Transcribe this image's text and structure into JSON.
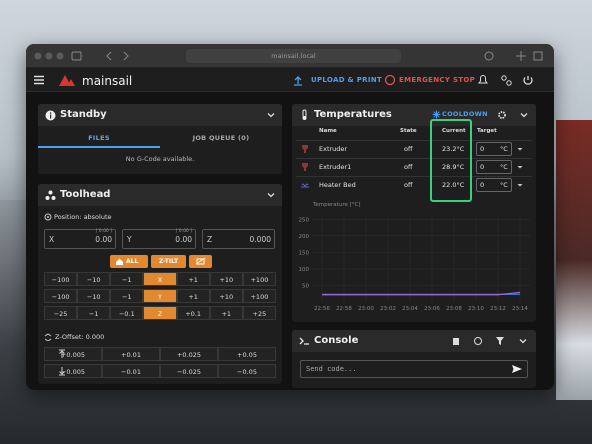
{
  "browser": {
    "url": "mainsail.local"
  },
  "header": {
    "brand": "mainsail",
    "upload": "UPLOAD & PRINT",
    "emergency": "EMERGENCY STOP"
  },
  "standby": {
    "title": "Standby",
    "tabs": [
      "FILES",
      "JOB QUEUE (0)"
    ],
    "empty": "No G-Code available."
  },
  "toolhead": {
    "title": "Toolhead",
    "position": "Position: absolute",
    "axes": [
      {
        "label": "X",
        "target": "[ 0.00 ]",
        "value": "0.00"
      },
      {
        "label": "Y",
        "target": "[ 0.00 ]",
        "value": "0.00"
      },
      {
        "label": "Z",
        "value": "0.000"
      }
    ],
    "home_buttons": [
      "ALL",
      "Z-TILT"
    ],
    "move_rows": [
      [
        "−100",
        "−10",
        "−1",
        "X",
        "+1",
        "+10",
        "+100"
      ],
      [
        "−100",
        "−10",
        "−1",
        "Y",
        "+1",
        "+10",
        "+100"
      ],
      [
        "−25",
        "−1",
        "−0.1",
        "Z",
        "+0.1",
        "+1",
        "+25"
      ]
    ],
    "z_offset": "Z-Offset: 0.000",
    "z_offset_rows": [
      [
        "+0.005",
        "+0.01",
        "+0.025",
        "+0.05"
      ],
      [
        "−0.005",
        "−0.01",
        "−0.025",
        "−0.05"
      ]
    ]
  },
  "temperatures": {
    "title": "Temperatures",
    "cooldown": "COOLDOWN",
    "columns": [
      "Name",
      "State",
      "Current",
      "Target"
    ],
    "rows": [
      {
        "name": "Extruder",
        "state": "off",
        "current": "23.2°C",
        "target": "0",
        "unit": "°C"
      },
      {
        "name": "Extruder1",
        "state": "off",
        "current": "28.9°C",
        "target": "0",
        "unit": "°C"
      },
      {
        "name": "Heater Bed",
        "state": "off",
        "current": "22.0°C",
        "target": "0",
        "unit": "°C"
      }
    ],
    "chart": {
      "type": "line",
      "ylabel": "Temperature [°C]",
      "categories": [
        "22:56",
        "22:58",
        "23:00",
        "23:02",
        "23:04",
        "23:06",
        "23:08",
        "23:10",
        "23:12",
        "23:14"
      ],
      "ylim": [
        0,
        260
      ],
      "yticks": [
        50,
        100,
        150,
        200,
        250
      ],
      "grid": true,
      "series": [
        {
          "color": "#3f6fd8",
          "values": [
            23,
            23,
            23,
            23,
            23,
            23,
            23,
            23,
            23,
            23
          ]
        },
        {
          "color": "#9b6bd6",
          "values": [
            22,
            22,
            22,
            22,
            22,
            22,
            22,
            22,
            22,
            29
          ]
        }
      ]
    }
  },
  "console": {
    "title": "Console",
    "placeholder": "Send code..."
  }
}
